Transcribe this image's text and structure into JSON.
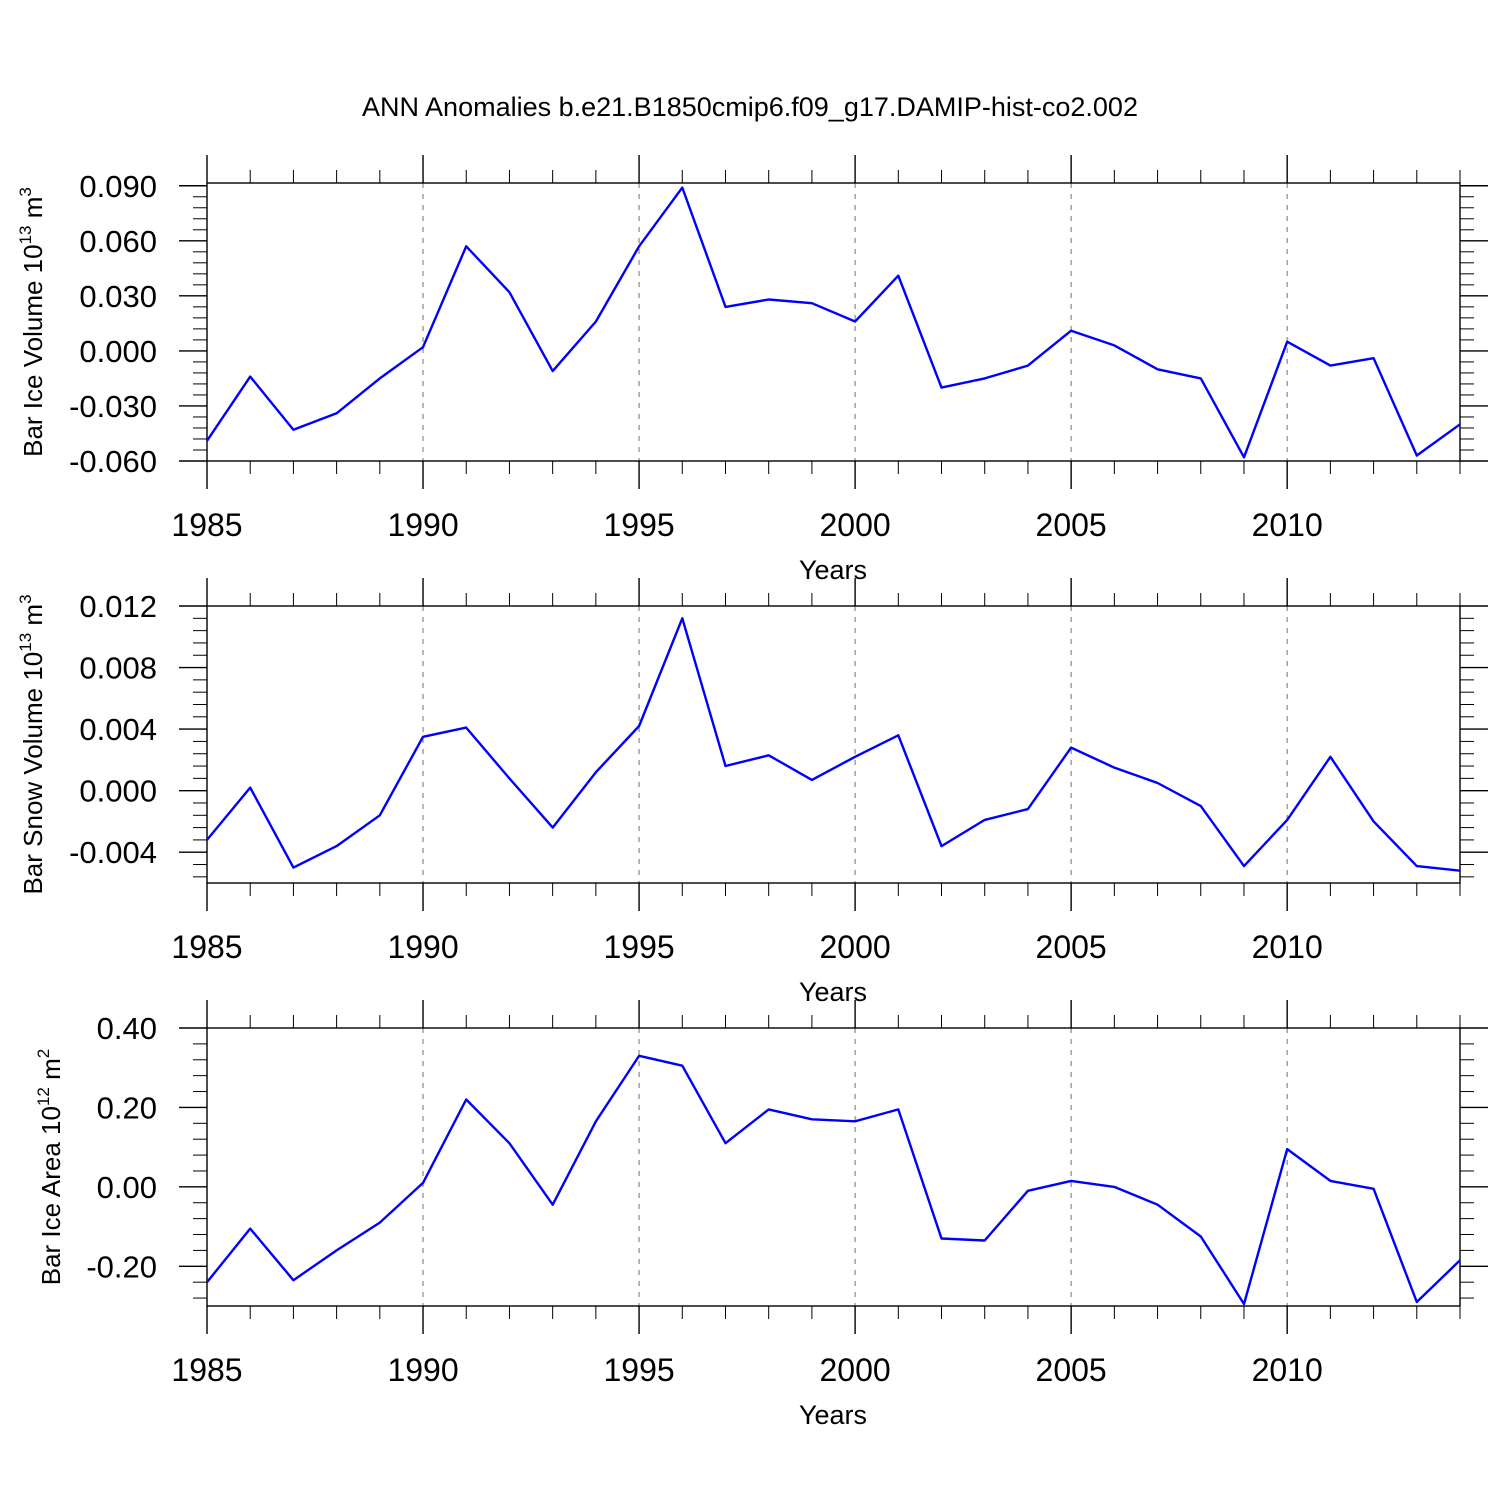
{
  "figure_title": "ANN Anomalies b.e21.B1850cmip6.f09_g17.DAMIP-hist-co2.002",
  "colors": {
    "line": "#0000ff",
    "axis": "#000000",
    "grid": "#8a8a8a"
  },
  "chart_data": [
    {
      "type": "line",
      "title": "",
      "xlabel": "Years",
      "ylabel_main": "Bar Ice Volume 10",
      "ylabel_sup": "13",
      "ylabel_unit": " m",
      "ylabel_unit_sup": "3",
      "xlim": [
        1985,
        2014
      ],
      "ylim": [
        -0.06,
        0.0915
      ],
      "yticks": [
        -0.06,
        -0.03,
        0.0,
        0.03,
        0.06,
        0.09
      ],
      "ytick_labels": [
        "-0.060",
        "-0.030",
        "0.000",
        "0.030",
        "0.060",
        "0.090"
      ],
      "xticks": [
        1985,
        1990,
        1995,
        2000,
        2005,
        2010
      ],
      "xtick_labels": [
        "1985",
        "1990",
        "1995",
        "2000",
        "2005",
        "2010"
      ],
      "vgrid": [
        1990,
        1995,
        2000,
        2005,
        2010
      ],
      "x": [
        1985,
        1986,
        1987,
        1988,
        1989,
        1990,
        1991,
        1992,
        1993,
        1994,
        1995,
        1996,
        1997,
        1998,
        1999,
        2000,
        2001,
        2002,
        2003,
        2004,
        2005,
        2006,
        2007,
        2008,
        2009,
        2010,
        2011,
        2012,
        2013,
        2014
      ],
      "series": [
        {
          "name": "Bar Ice Volume",
          "values": [
            -0.049,
            -0.014,
            -0.043,
            -0.034,
            -0.015,
            0.002,
            0.057,
            0.032,
            -0.011,
            0.016,
            0.057,
            0.089,
            0.024,
            0.028,
            0.026,
            0.016,
            0.041,
            -0.02,
            -0.015,
            -0.008,
            0.011,
            0.003,
            -0.01,
            -0.015,
            -0.058,
            0.005,
            -0.008,
            -0.004,
            -0.057,
            -0.04
          ]
        }
      ]
    },
    {
      "type": "line",
      "title": "",
      "xlabel": "Years",
      "ylabel_main": "Bar Snow Volume 10",
      "ylabel_sup": "13",
      "ylabel_unit": " m",
      "ylabel_unit_sup": "3",
      "xlim": [
        1985,
        2014
      ],
      "ylim": [
        -0.006,
        0.012
      ],
      "yticks": [
        -0.004,
        0.0,
        0.004,
        0.008,
        0.012
      ],
      "ytick_labels": [
        "-0.004",
        "0.000",
        "0.004",
        "0.008",
        "0.012"
      ],
      "xticks": [
        1985,
        1990,
        1995,
        2000,
        2005,
        2010
      ],
      "xtick_labels": [
        "1985",
        "1990",
        "1995",
        "2000",
        "2005",
        "2010"
      ],
      "vgrid": [
        1990,
        1995,
        2000,
        2005,
        2010
      ],
      "x": [
        1985,
        1986,
        1987,
        1988,
        1989,
        1990,
        1991,
        1992,
        1993,
        1994,
        1995,
        1996,
        1997,
        1998,
        1999,
        2000,
        2001,
        2002,
        2003,
        2004,
        2005,
        2006,
        2007,
        2008,
        2009,
        2010,
        2011,
        2012,
        2013,
        2014
      ],
      "series": [
        {
          "name": "Bar Snow Volume",
          "values": [
            -0.0032,
            0.0002,
            -0.005,
            -0.0036,
            -0.0016,
            0.0035,
            0.0041,
            0.0008,
            -0.0024,
            0.0012,
            0.0042,
            0.0112,
            0.0016,
            0.0023,
            0.0007,
            0.0022,
            0.0036,
            -0.0036,
            -0.0019,
            -0.0012,
            0.0028,
            0.0015,
            0.0005,
            -0.001,
            -0.0049,
            -0.0019,
            0.0022,
            -0.002,
            -0.0049,
            -0.0052
          ]
        }
      ]
    },
    {
      "type": "line",
      "title": "",
      "xlabel": "Years",
      "ylabel_main": "Bar Ice Area 10",
      "ylabel_sup": "12",
      "ylabel_unit": " m",
      "ylabel_unit_sup": "2",
      "xlim": [
        1985,
        2014
      ],
      "ylim": [
        -0.3,
        0.4
      ],
      "yticks": [
        -0.2,
        0.0,
        0.2,
        0.4
      ],
      "ytick_labels": [
        "-0.20",
        "0.00",
        "0.20",
        "0.40"
      ],
      "xticks": [
        1985,
        1990,
        1995,
        2000,
        2005,
        2010
      ],
      "xtick_labels": [
        "1985",
        "1990",
        "1995",
        "2000",
        "2005",
        "2010"
      ],
      "vgrid": [
        1990,
        1995,
        2000,
        2005,
        2010
      ],
      "x": [
        1985,
        1986,
        1987,
        1988,
        1989,
        1990,
        1991,
        1992,
        1993,
        1994,
        1995,
        1996,
        1997,
        1998,
        1999,
        2000,
        2001,
        2002,
        2003,
        2004,
        2005,
        2006,
        2007,
        2008,
        2009,
        2010,
        2011,
        2012,
        2013,
        2014
      ],
      "series": [
        {
          "name": "Bar Ice Area",
          "values": [
            -0.24,
            -0.105,
            -0.235,
            -0.16,
            -0.09,
            0.01,
            0.22,
            0.11,
            -0.045,
            0.165,
            0.33,
            0.305,
            0.11,
            0.195,
            0.17,
            0.165,
            0.195,
            -0.13,
            -0.135,
            -0.01,
            0.015,
            0.0,
            -0.045,
            -0.125,
            -0.295,
            0.095,
            0.015,
            -0.005,
            -0.29,
            -0.185
          ]
        }
      ]
    }
  ]
}
